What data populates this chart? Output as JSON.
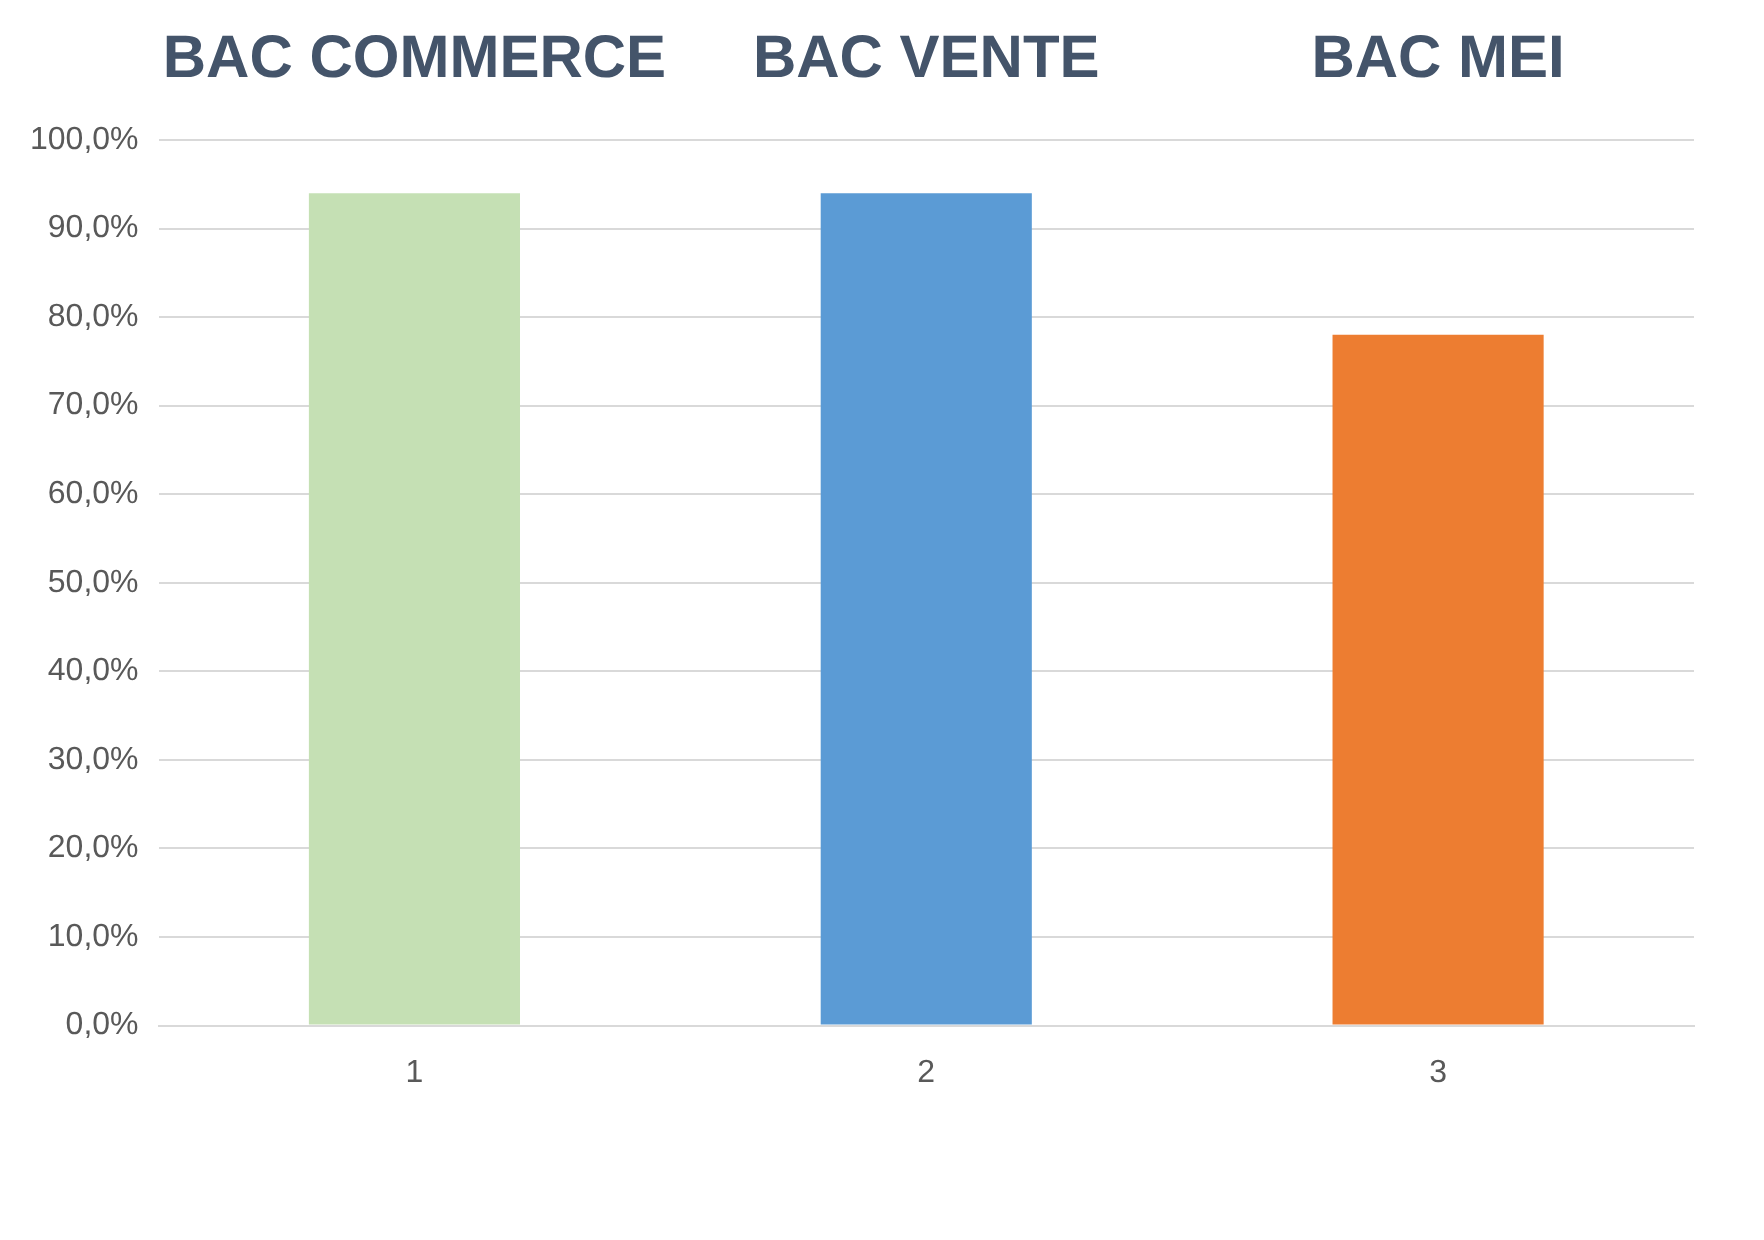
{
  "chart_data": {
    "type": "bar",
    "categories": [
      "1",
      "2",
      "3"
    ],
    "values": [
      94,
      94,
      78
    ],
    "colors": [
      "#c5e0b4",
      "#5b9bd5",
      "#ed7d31"
    ],
    "ylim": [
      0,
      100
    ],
    "yticks": [
      {
        "value": 0,
        "label": "0,0%"
      },
      {
        "value": 10,
        "label": "10,0%"
      },
      {
        "value": 20,
        "label": "20,0%"
      },
      {
        "value": 30,
        "label": "30,0%"
      },
      {
        "value": 40,
        "label": "40,0%"
      },
      {
        "value": 50,
        "label": "50,0%"
      },
      {
        "value": 60,
        "label": "60,0%"
      },
      {
        "value": 70,
        "label": "70,0%"
      },
      {
        "value": 80,
        "label": "80,0%"
      },
      {
        "value": 90,
        "label": "90,0%"
      },
      {
        "value": 100,
        "label": "100,0%"
      }
    ],
    "grid": "y",
    "legend": false,
    "annotations": [
      "BAC COMMERCE",
      "BAC VENTE",
      "BAC MEI"
    ]
  }
}
